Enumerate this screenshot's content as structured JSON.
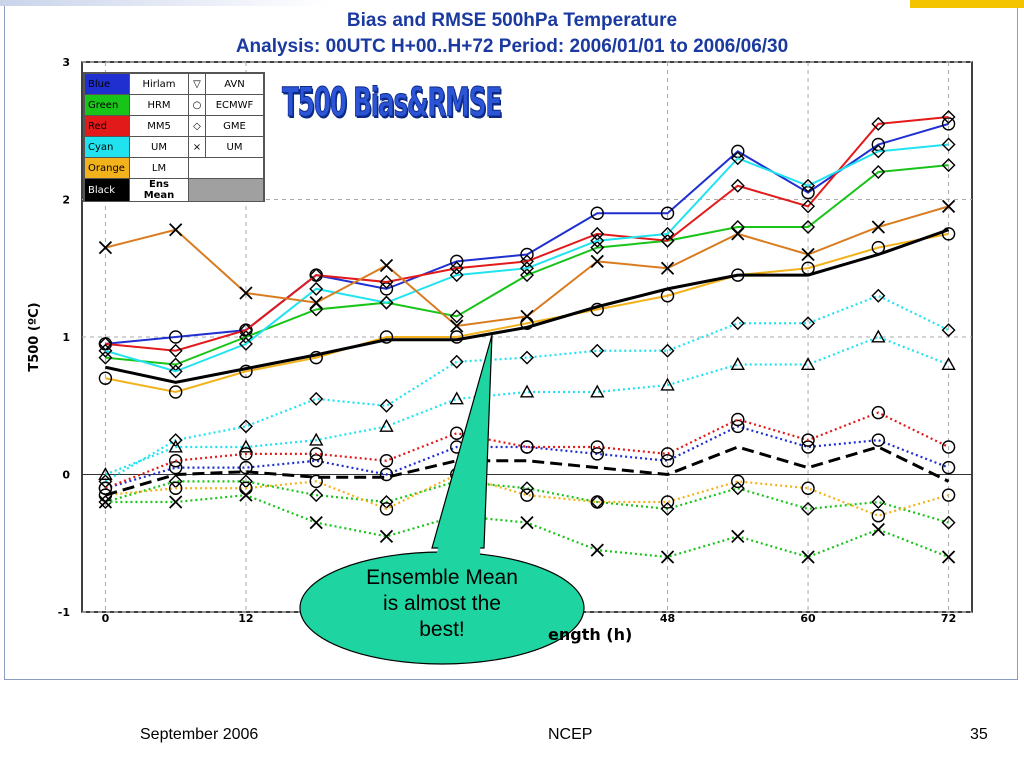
{
  "slide": {
    "title_line1": "Bias and RMSE  500hPa Temperature",
    "title_line2": "Analysis: 00UTC  H+00..H+72   Period: 2006/01/01 to 2006/06/30",
    "stamp_text": "T500  Bias&RMSE",
    "callout_text": [
      "Ensemble Mean",
      "is almost the",
      "best!"
    ],
    "xlabel_partial": "ength (h)",
    "footer": {
      "date": "September 2006",
      "org": "NCEP",
      "page": "35"
    }
  },
  "legend": {
    "models": [
      {
        "color_name": "Blue",
        "model": "Hirlam",
        "symbol_glyph": "▽",
        "symbol_name": "AVN",
        "color": "#1f2fd0"
      },
      {
        "color_name": "Green",
        "model": "HRM",
        "symbol_glyph": "○",
        "symbol_name": "ECMWF",
        "color": "#19c419"
      },
      {
        "color_name": "Red",
        "model": "MM5",
        "symbol_glyph": "◇",
        "symbol_name": "GME",
        "color": "#e21a1a"
      },
      {
        "color_name": "Cyan",
        "model": "UM",
        "symbol_glyph": "×",
        "symbol_name": "UM",
        "color": "#21e3f0"
      },
      {
        "color_name": "Orange",
        "model": "LM",
        "symbol_glyph": "",
        "symbol_name": "",
        "color": "#f2b21b"
      },
      {
        "color_name": "Black",
        "model": "Ens Mean",
        "symbol_glyph": "",
        "symbol_name": "",
        "color": "#000000"
      }
    ]
  },
  "chart_data": {
    "type": "line",
    "ylabel": "T500 (ºC)",
    "xlabel": "",
    "x": [
      0,
      6,
      12,
      18,
      24,
      30,
      36,
      42,
      48,
      54,
      60,
      66,
      72
    ],
    "xticks": [
      0,
      12,
      48,
      60,
      72
    ],
    "yticks": [
      -1,
      0,
      1,
      2,
      3
    ],
    "xlim": [
      -2,
      74
    ],
    "ylim": [
      -1,
      3
    ],
    "grid": true,
    "series": [
      {
        "color": "#1f2fd0",
        "style": "solid",
        "marker": "circle",
        "values": [
          0.95,
          1.0,
          1.05,
          1.45,
          1.35,
          1.55,
          1.6,
          1.9,
          1.9,
          2.35,
          2.05,
          2.4,
          2.55
        ]
      },
      {
        "color": "#19c419",
        "style": "solid",
        "marker": "diamond",
        "values": [
          0.85,
          0.8,
          1.0,
          1.2,
          1.25,
          1.15,
          1.45,
          1.65,
          1.7,
          1.8,
          1.8,
          2.2,
          2.25
        ]
      },
      {
        "color": "#e21a1a",
        "style": "solid",
        "marker": "diamond",
        "values": [
          0.95,
          0.9,
          1.05,
          1.45,
          1.4,
          1.5,
          1.55,
          1.75,
          1.7,
          2.1,
          1.95,
          2.55,
          2.6
        ]
      },
      {
        "color": "#21e3f0",
        "style": "solid",
        "marker": "diamond",
        "values": [
          0.9,
          0.75,
          0.95,
          1.35,
          1.25,
          1.45,
          1.5,
          1.7,
          1.75,
          2.3,
          2.1,
          2.35,
          2.4
        ]
      },
      {
        "color": "#f2b21b",
        "style": "solid",
        "marker": "circle",
        "values": [
          0.7,
          0.6,
          0.75,
          0.85,
          1.0,
          1.0,
          1.1,
          1.2,
          1.3,
          1.45,
          1.5,
          1.65,
          1.75
        ]
      },
      {
        "color": "#000000",
        "style": "solid-thick",
        "marker": "none",
        "values": [
          0.78,
          0.67,
          0.77,
          0.87,
          0.98,
          0.98,
          1.07,
          1.22,
          1.35,
          1.45,
          1.45,
          1.6,
          1.78
        ]
      },
      {
        "color": "#d97c20",
        "style": "solid",
        "marker": "x",
        "values": [
          1.65,
          1.78,
          1.32,
          1.25,
          1.52,
          1.08,
          1.15,
          1.55,
          1.5,
          1.75,
          1.6,
          1.8,
          1.95
        ]
      },
      {
        "color": "#21e3f0",
        "style": "dotted",
        "marker": "diamond",
        "values": [
          -0.05,
          0.25,
          0.35,
          0.55,
          0.5,
          0.82,
          0.85,
          0.9,
          0.9,
          1.1,
          1.1,
          1.3,
          1.05
        ]
      },
      {
        "color": "#21e3f0",
        "style": "dotted",
        "marker": "triangle",
        "values": [
          0.0,
          0.2,
          0.2,
          0.25,
          0.35,
          0.55,
          0.6,
          0.6,
          0.65,
          0.8,
          0.8,
          1.0,
          0.8
        ]
      },
      {
        "color": "#1f2fd0",
        "style": "dotted",
        "marker": "circle",
        "values": [
          -0.1,
          0.05,
          0.05,
          0.1,
          0.0,
          0.2,
          0.2,
          0.15,
          0.1,
          0.35,
          0.2,
          0.25,
          0.05
        ]
      },
      {
        "color": "#e21a1a",
        "style": "dotted",
        "marker": "circle",
        "values": [
          -0.1,
          0.1,
          0.15,
          0.15,
          0.1,
          0.3,
          0.2,
          0.2,
          0.15,
          0.4,
          0.25,
          0.45,
          0.2
        ]
      },
      {
        "color": "#19c419",
        "style": "dotted",
        "marker": "diamond",
        "values": [
          -0.2,
          -0.05,
          -0.05,
          -0.15,
          -0.2,
          -0.05,
          -0.1,
          -0.2,
          -0.25,
          -0.1,
          -0.25,
          -0.2,
          -0.35
        ]
      },
      {
        "color": "#f2b21b",
        "style": "dotted",
        "marker": "circle",
        "values": [
          -0.15,
          -0.1,
          -0.1,
          -0.05,
          -0.25,
          0.0,
          -0.15,
          -0.2,
          -0.2,
          -0.05,
          -0.1,
          -0.3,
          -0.15
        ]
      },
      {
        "color": "#19c419",
        "style": "dotted",
        "marker": "x",
        "values": [
          -0.2,
          -0.2,
          -0.15,
          -0.35,
          -0.45,
          -0.3,
          -0.35,
          -0.55,
          -0.6,
          -0.45,
          -0.6,
          -0.4,
          -0.6
        ]
      },
      {
        "color": "#000000",
        "style": "dashed-thick",
        "marker": "none",
        "values": [
          -0.15,
          0.0,
          0.02,
          -0.02,
          -0.02,
          0.1,
          0.1,
          0.05,
          0.0,
          0.2,
          0.05,
          0.2,
          -0.05
        ]
      }
    ]
  }
}
